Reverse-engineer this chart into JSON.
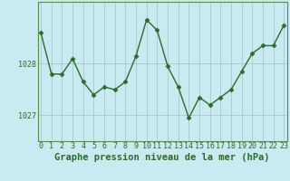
{
  "x": [
    0,
    1,
    2,
    3,
    4,
    5,
    6,
    7,
    8,
    9,
    10,
    11,
    12,
    13,
    14,
    15,
    16,
    17,
    18,
    19,
    20,
    21,
    22,
    23
  ],
  "y": [
    1028.6,
    1027.8,
    1027.8,
    1028.1,
    1027.65,
    1027.4,
    1027.55,
    1027.5,
    1027.65,
    1028.15,
    1028.85,
    1028.65,
    1027.95,
    1027.55,
    1026.95,
    1027.35,
    1027.2,
    1027.35,
    1027.5,
    1027.85,
    1028.2,
    1028.35,
    1028.35,
    1028.75
  ],
  "line_color": "#2d6a2d",
  "marker": "D",
  "marker_size": 2.5,
  "bg_color": "#c8eaf0",
  "grid_color": "#9ec4c4",
  "border_color": "#5a8a5a",
  "yticks": [
    1027,
    1028
  ],
  "ylim": [
    1026.5,
    1029.2
  ],
  "xlim": [
    -0.3,
    23.3
  ],
  "xlabel": "Graphe pression niveau de la mer (hPa)",
  "xlabel_fontsize": 7.5,
  "linewidth": 1.0,
  "tick_fontsize": 6.0
}
